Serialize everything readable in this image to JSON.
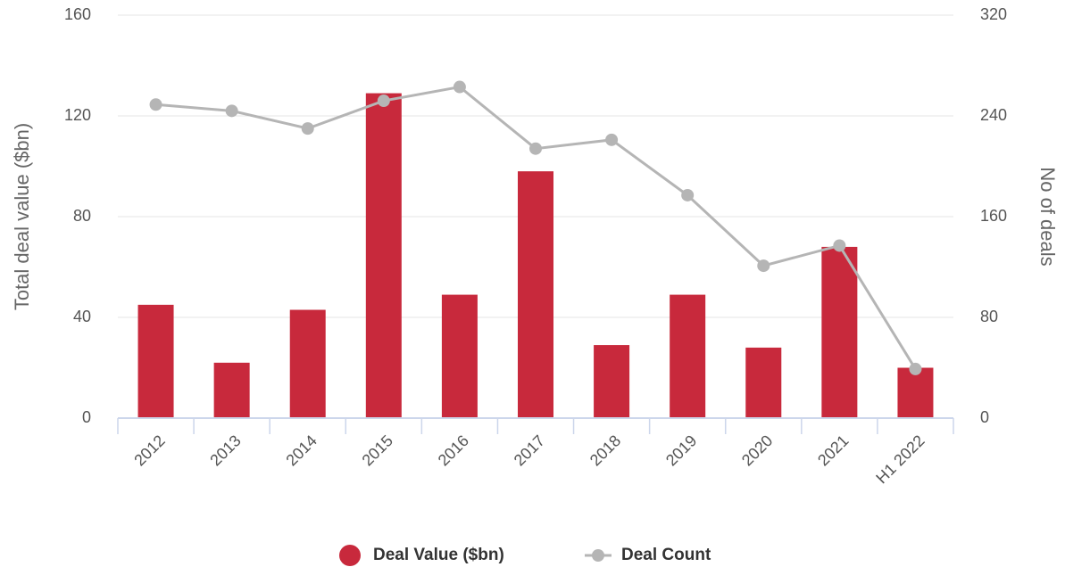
{
  "chart_data": {
    "type": "bar-line",
    "categories": [
      "2012",
      "2013",
      "2014",
      "2015",
      "2016",
      "2017",
      "2018",
      "2019",
      "2020",
      "2021",
      "H1 2022"
    ],
    "y_label": "Total deal value ($bn)",
    "y2_label": "No of deals",
    "ylim": [
      0,
      160
    ],
    "yticks": [
      0,
      40,
      80,
      120,
      160
    ],
    "y2lim": [
      0,
      320
    ],
    "y2ticks": [
      0,
      80,
      160,
      240,
      320
    ],
    "grid": true,
    "legend": "bottom",
    "series": [
      {
        "name": "Deal Value ($bn)",
        "type": "bar",
        "color": "#c8293c",
        "values": [
          45,
          22,
          43,
          129,
          49,
          98,
          29,
          49,
          28,
          68,
          20
        ]
      },
      {
        "name": "Deal Count",
        "type": "line",
        "axis": "y2",
        "color": "#b5b5b5",
        "values": [
          249,
          244,
          230,
          252,
          263,
          214,
          221,
          177,
          121,
          137,
          39
        ]
      }
    ]
  }
}
